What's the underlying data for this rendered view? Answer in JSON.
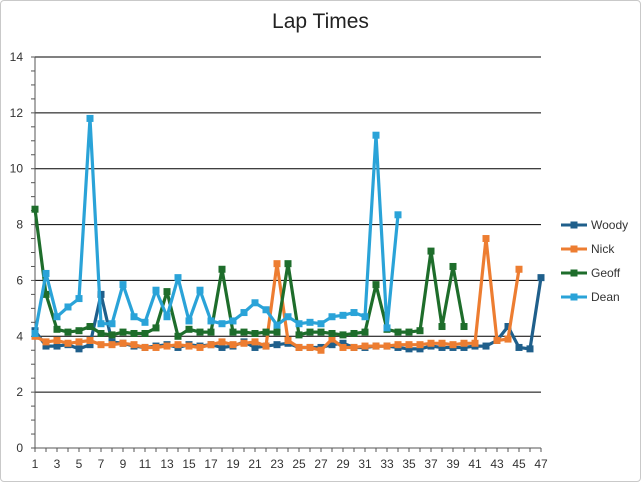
{
  "chart_data": {
    "type": "line",
    "title": "Lap Times",
    "xlabel": "",
    "ylabel": "",
    "ylim": [
      0,
      14
    ],
    "yticks": [
      0,
      2,
      4,
      6,
      8,
      10,
      12,
      14
    ],
    "xlim": [
      1,
      47
    ],
    "xticks": [
      1,
      3,
      5,
      7,
      9,
      11,
      13,
      15,
      17,
      19,
      21,
      23,
      25,
      27,
      29,
      31,
      33,
      35,
      37,
      39,
      41,
      43,
      45,
      47
    ],
    "grid": true,
    "legend": "right",
    "series": [
      {
        "name": "Woody",
        "color": "#1f5f8b",
        "x": [
          1,
          2,
          3,
          4,
          5,
          6,
          7,
          8,
          9,
          10,
          11,
          12,
          13,
          14,
          15,
          16,
          17,
          18,
          19,
          20,
          21,
          22,
          23,
          24,
          25,
          26,
          27,
          28,
          29,
          30,
          31,
          32,
          33,
          34,
          35,
          36,
          37,
          38,
          39,
          40,
          41,
          42,
          43,
          44,
          45,
          46,
          47
        ],
        "values": [
          4.2,
          3.65,
          3.65,
          3.7,
          3.55,
          3.7,
          5.5,
          3.8,
          3.75,
          3.65,
          3.6,
          3.65,
          3.7,
          3.6,
          3.7,
          3.65,
          3.7,
          3.6,
          3.65,
          3.8,
          3.6,
          3.65,
          3.7,
          3.75,
          3.6,
          3.6,
          3.6,
          3.7,
          3.75,
          3.6,
          3.6,
          3.65,
          3.65,
          3.6,
          3.55,
          3.55,
          3.65,
          3.6,
          3.6,
          3.6,
          3.65,
          3.65,
          3.85,
          4.35,
          3.6,
          3.55,
          6.1
        ]
      },
      {
        "name": "Nick",
        "color": "#ed7d31",
        "x": [
          1,
          2,
          3,
          4,
          5,
          6,
          7,
          8,
          9,
          10,
          11,
          12,
          13,
          14,
          15,
          16,
          17,
          18,
          19,
          20,
          21,
          22,
          23,
          24,
          25,
          26,
          27,
          28,
          29,
          30,
          31,
          32,
          33,
          34,
          35,
          36,
          37,
          38,
          39,
          40,
          41,
          42,
          43,
          44,
          45
        ],
        "values": [
          4.0,
          3.8,
          3.85,
          3.75,
          3.8,
          3.85,
          3.7,
          3.7,
          3.75,
          3.7,
          3.6,
          3.6,
          3.65,
          3.7,
          3.65,
          3.6,
          3.7,
          3.8,
          3.7,
          3.75,
          3.8,
          3.65,
          6.6,
          3.85,
          3.6,
          3.6,
          3.5,
          3.9,
          3.6,
          3.6,
          3.65,
          3.65,
          3.65,
          3.7,
          3.7,
          3.7,
          3.75,
          3.75,
          3.7,
          3.75,
          3.75,
          7.5,
          3.85,
          3.9,
          6.4
        ]
      },
      {
        "name": "Geoff",
        "color": "#1e6d2b",
        "x": [
          1,
          2,
          3,
          4,
          5,
          6,
          7,
          8,
          9,
          10,
          11,
          12,
          13,
          14,
          15,
          16,
          17,
          18,
          19,
          20,
          21,
          22,
          23,
          24,
          25,
          26,
          27,
          28,
          29,
          30,
          31,
          32,
          33,
          34,
          35,
          36,
          37,
          38,
          39,
          40
        ],
        "values": [
          8.55,
          5.5,
          4.25,
          4.15,
          4.2,
          4.35,
          4.1,
          4.05,
          4.15,
          4.1,
          4.1,
          4.3,
          5.6,
          4.0,
          4.25,
          4.15,
          4.15,
          6.4,
          4.15,
          4.15,
          4.1,
          4.15,
          4.15,
          6.6,
          4.05,
          4.15,
          4.15,
          4.1,
          4.05,
          4.1,
          4.15,
          5.85,
          4.25,
          4.15,
          4.15,
          4.2,
          7.05,
          4.35,
          6.5,
          4.35
        ]
      },
      {
        "name": "Dean",
        "color": "#2aa3d8",
        "x": [
          1,
          2,
          3,
          4,
          5,
          6,
          7,
          8,
          9,
          10,
          11,
          12,
          13,
          14,
          15,
          16,
          17,
          18,
          19,
          20,
          21,
          22,
          23,
          24,
          25,
          26,
          27,
          28,
          29,
          30,
          31,
          32,
          33,
          34
        ],
        "values": [
          4.1,
          6.25,
          4.7,
          5.05,
          5.35,
          11.8,
          4.45,
          4.45,
          5.85,
          4.7,
          4.5,
          5.65,
          4.7,
          6.1,
          4.55,
          5.65,
          4.55,
          4.45,
          4.55,
          4.85,
          5.2,
          4.95,
          4.4,
          4.7,
          4.45,
          4.5,
          4.45,
          4.7,
          4.75,
          4.85,
          4.7,
          11.2,
          4.3,
          8.35
        ]
      }
    ]
  }
}
